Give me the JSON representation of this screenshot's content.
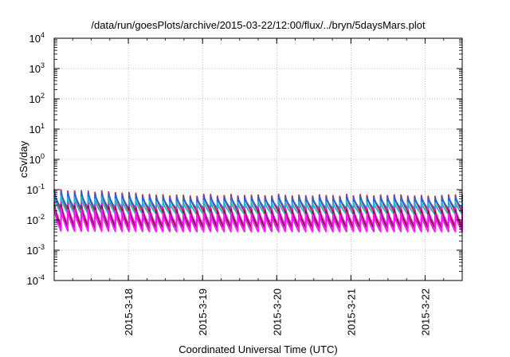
{
  "chart_data": {
    "type": "line",
    "title": "/data/run/goesPlots/archive/2015-03-22/12:00/flux/../bryn/5daysMars.plot",
    "xlabel": "Coordinated Universal Time (UTC)",
    "ylabel": "cSv/day",
    "yscale": "log",
    "ylim": [
      0.0001,
      10000
    ],
    "xlim": [
      "2015-03-17 00:00",
      "2015-03-22 12:00"
    ],
    "grid": "on",
    "y_ticks": [
      {
        "base": "10",
        "exp": "-4"
      },
      {
        "base": "10",
        "exp": "-3"
      },
      {
        "base": "10",
        "exp": "-2"
      },
      {
        "base": "10",
        "exp": "-1"
      },
      {
        "base": "10",
        "exp": "0"
      },
      {
        "base": "10",
        "exp": "1"
      },
      {
        "base": "10",
        "exp": "2"
      },
      {
        "base": "10",
        "exp": "3"
      },
      {
        "base": "10",
        "exp": "4"
      }
    ],
    "x_ticks": [
      "2015-3-18",
      "2015-3-19",
      "2015-3-20",
      "2015-3-21",
      "2015-3-22"
    ],
    "pattern": {
      "cycle_hours": 2.2,
      "spike": "sharp rise then exponential-like decay (sawtooth)",
      "early_amplification_until": "2015-03-18 12:00"
    },
    "series": [
      {
        "color": "#e8212b",
        "peak": 0.065,
        "trough": 0.0175
      },
      {
        "color": "#2a62d6",
        "peak": 0.058,
        "trough": 0.022
      },
      {
        "color": "#22b9c9",
        "peak": 0.04,
        "trough": 0.0145
      },
      {
        "color": "#ef1cd6",
        "peak": 0.025,
        "trough": 0.0062
      },
      {
        "color": "#7d1f38",
        "peak": 0.021,
        "trough": 0.0051
      },
      {
        "color": "#ff17ff",
        "peak": 0.016,
        "trough": 0.0039
      }
    ]
  }
}
